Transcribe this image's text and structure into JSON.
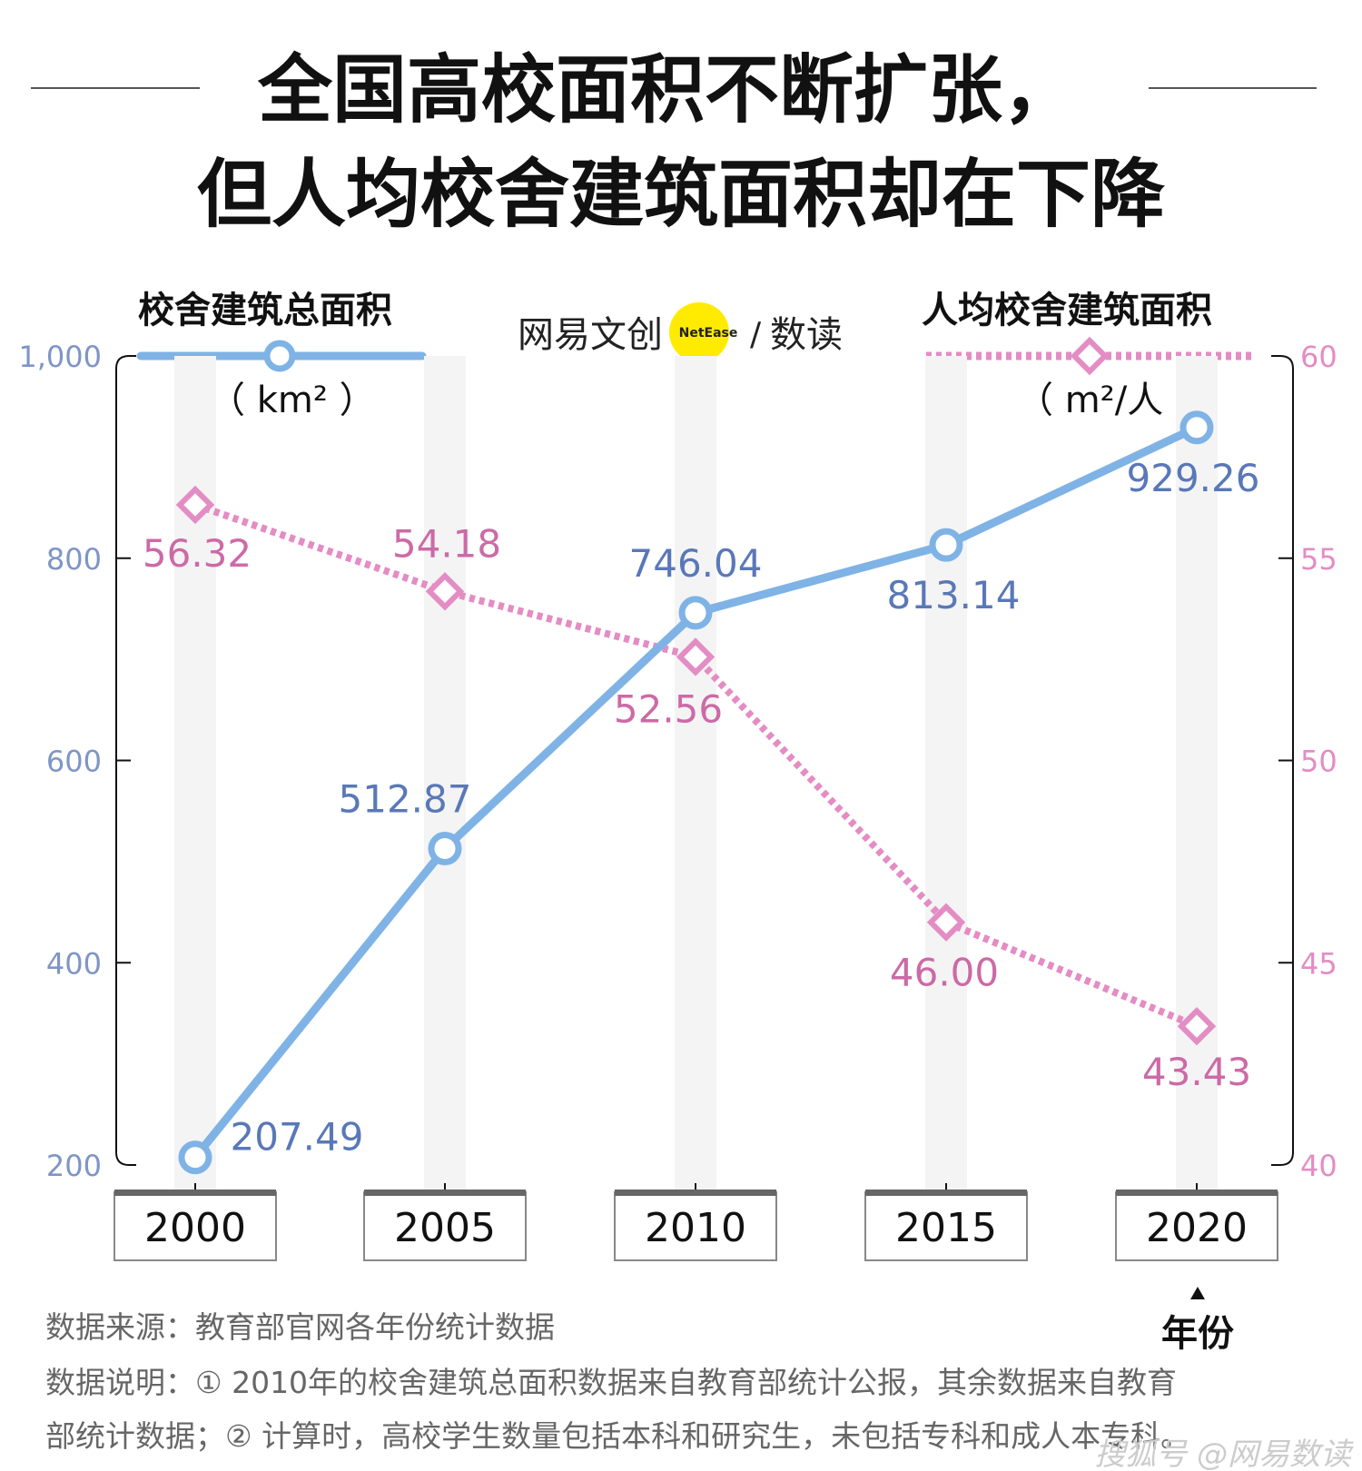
{
  "title": {
    "line1": "全国高校面积不断扩张，",
    "line2": "但人均校舍建筑面积却在下降"
  },
  "logo": {
    "brand": "网易文创",
    "badge": "NetEase",
    "slash": "/",
    "sub": "数读"
  },
  "legend": {
    "left_name": "校舍建筑总面积",
    "left_unit": "（ km² ）",
    "right_name": "人均校舍建筑面积",
    "right_unit": "（ m²/人 ）"
  },
  "x_axis_label": "年份",
  "footer": {
    "source": "数据来源：教育部官网各年份统计数据",
    "note_line1": "数据说明：① 2010年的校舍建筑总面积数据来自教育部统计公报，其余数据来自教育",
    "note_line2": "部统计数据；② 计算时，高校学生数量包括本科和研究生，未包括专科和成人本专科。"
  },
  "watermark": "搜狐号 @网易数读",
  "colors": {
    "area": "#7fb3e6",
    "area_label": "#5a78b8",
    "per_capita": "#e48cc4",
    "per_capita_label": "#cc6aa6",
    "left_tick": "#7f95c6",
    "right_tick": "#e48cc4",
    "logo_dot": "#ffeb00"
  },
  "chart_data": {
    "type": "line",
    "x": [
      2000,
      2005,
      2010,
      2015,
      2020
    ],
    "x_tick_labels": [
      "2000",
      "2005",
      "2010",
      "2015",
      "2020"
    ],
    "series": [
      {
        "name": "校舍建筑总面积",
        "unit": "km²",
        "axis": "left",
        "values": [
          207.49,
          512.87,
          746.04,
          813.14,
          929.26
        ],
        "labels": [
          "207.49",
          "512.87",
          "746.04",
          "813.14",
          "929.26"
        ]
      },
      {
        "name": "人均校舍建筑面积",
        "unit": "m²/人",
        "axis": "right",
        "values": [
          56.32,
          54.18,
          52.56,
          46.0,
          43.43
        ],
        "labels": [
          "56.32",
          "54.18",
          "52.56",
          "46.00",
          "43.43"
        ]
      }
    ],
    "y_left": {
      "min": 200,
      "max": 1000,
      "ticks": [
        200,
        400,
        600,
        800,
        1000
      ],
      "tick_labels": [
        "200",
        "400",
        "600",
        "800",
        "1,000"
      ]
    },
    "y_right": {
      "min": 40,
      "max": 60,
      "ticks": [
        40,
        45,
        50,
        55,
        60
      ],
      "tick_labels": [
        "40",
        "45",
        "50",
        "55",
        "60"
      ]
    },
    "grid": false,
    "legend_position": "top"
  }
}
